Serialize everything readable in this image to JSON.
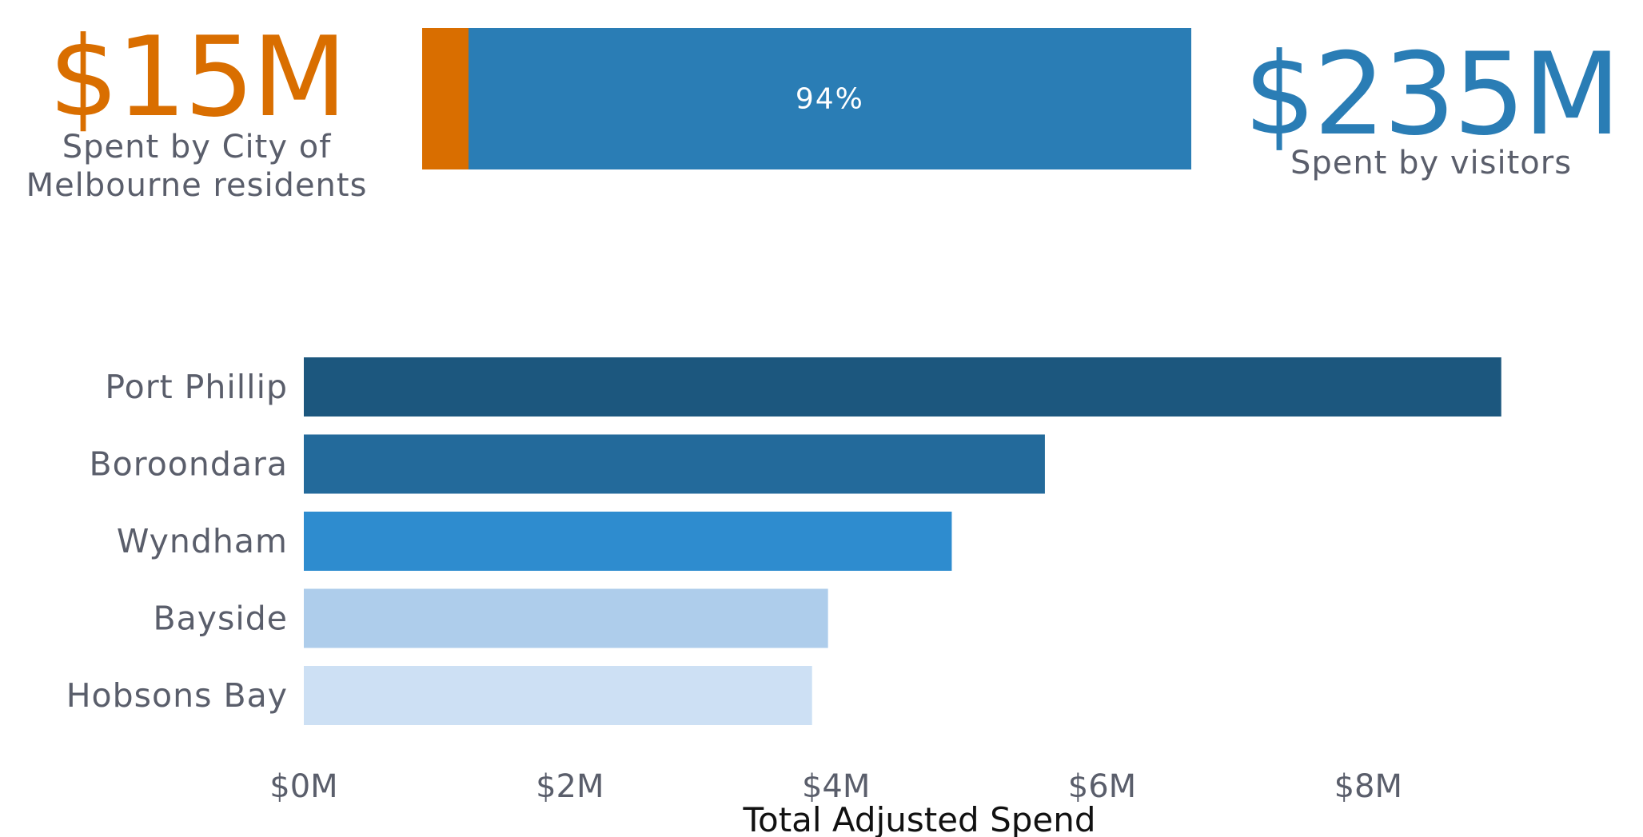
{
  "colors": {
    "residents": "#d96e00",
    "visitors": "#2a7db5"
  },
  "summary": {
    "residents": {
      "value": "$15M",
      "label_line1": "Spent by City of",
      "label_line2": "Melbourne residents"
    },
    "visitors": {
      "value": "$235M",
      "label": "Spent by visitors"
    },
    "split": {
      "residents_share": 6,
      "visitors_share": 94,
      "visitors_label": "94%"
    }
  },
  "chart_data": [
    {
      "type": "bar",
      "orientation": "horizontal",
      "categories": [
        "Port Phillip",
        "Boroondara",
        "Wyndham",
        "Bayside",
        "Hobsons Bay"
      ],
      "values": [
        9.0,
        5.57,
        4.87,
        3.94,
        3.82
      ],
      "bar_colors": [
        "#1c577e",
        "#236a9b",
        "#2e8ccf",
        "#aecdeb",
        "#cde0f4"
      ],
      "xlabel": "Total Adjusted Spend",
      "ylabel": "",
      "xlim": [
        0,
        9.2
      ],
      "xticks": [
        0,
        2,
        4,
        6,
        8
      ],
      "xtick_labels": [
        "$0M",
        "$2M",
        "$4M",
        "$6M",
        "$8M"
      ],
      "grid": false
    }
  ]
}
